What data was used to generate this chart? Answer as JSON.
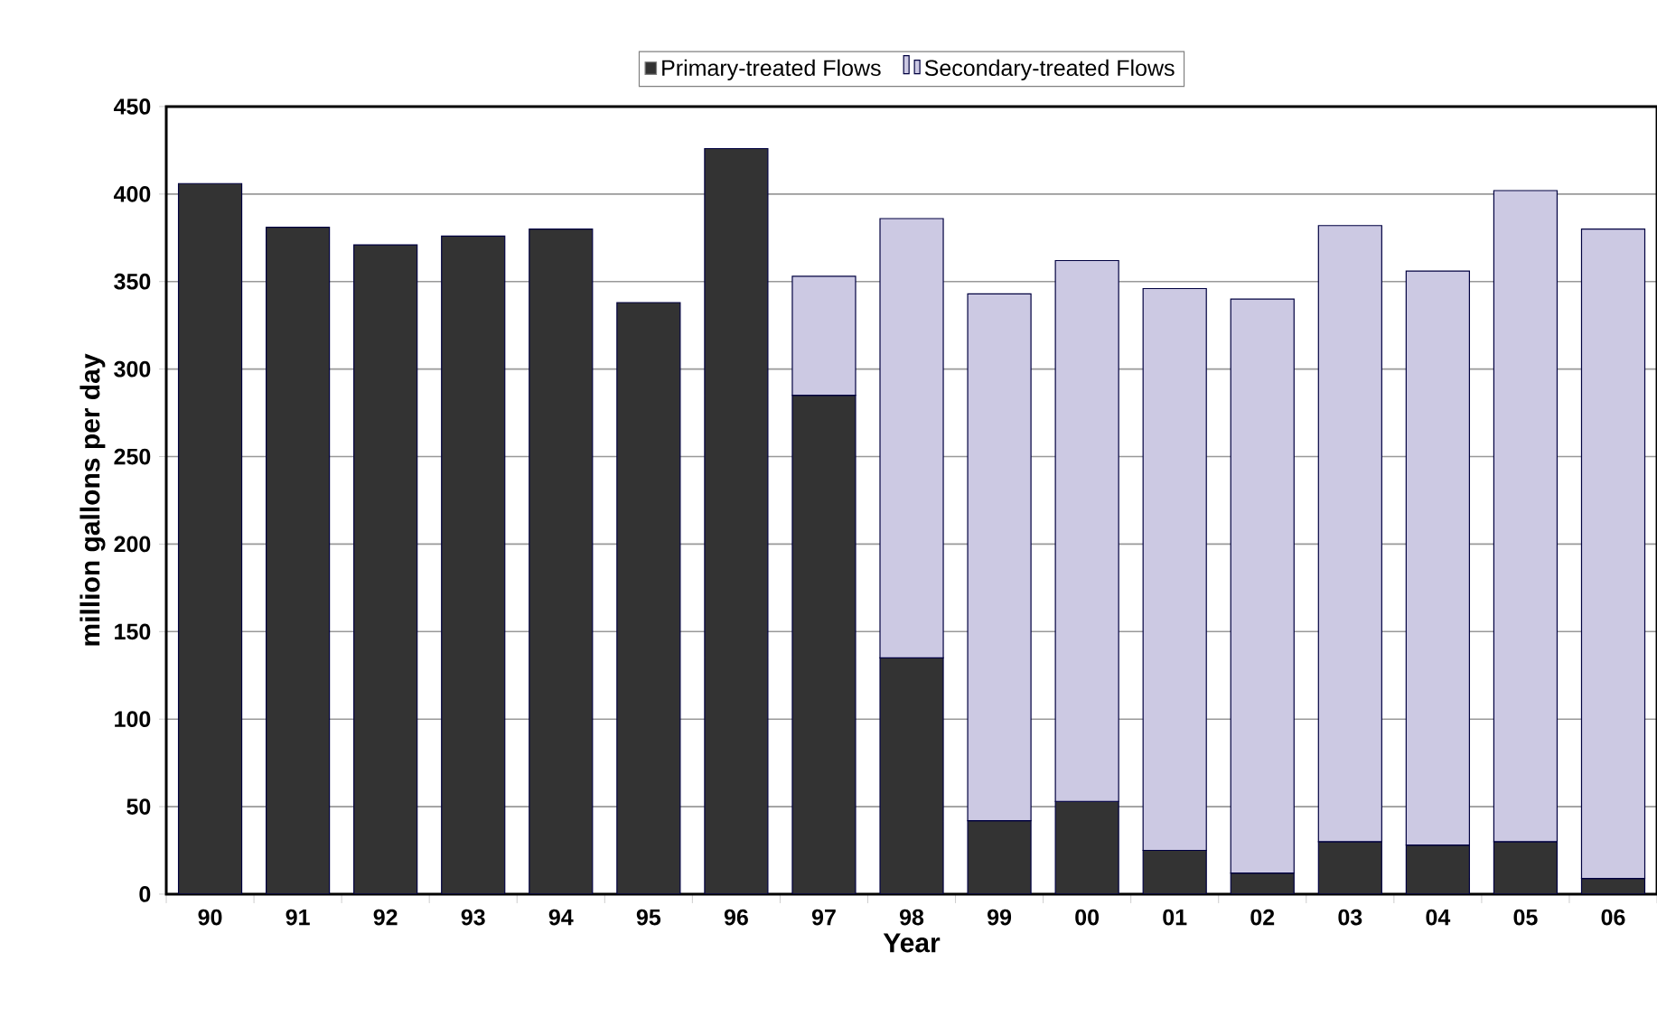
{
  "chart_data": {
    "type": "bar",
    "stacked": true,
    "xlabel": "Year",
    "ylabel": "million gallons per day",
    "categories": [
      "90",
      "91",
      "92",
      "93",
      "94",
      "95",
      "96",
      "97",
      "98",
      "99",
      "00",
      "01",
      "02",
      "03",
      "04",
      "05",
      "06"
    ],
    "series": [
      {
        "name": "Primary-treated Flows",
        "color": "#333333",
        "values": [
          406,
          381,
          371,
          376,
          380,
          338,
          426,
          285,
          135,
          42,
          53,
          25,
          12,
          30,
          28,
          30,
          9
        ]
      },
      {
        "name": "Secondary-treated Flows",
        "color": "#ccc9e3",
        "values": [
          null,
          null,
          null,
          null,
          null,
          null,
          null,
          68,
          251,
          301,
          309,
          321,
          328,
          352,
          328,
          372,
          371
        ]
      }
    ],
    "ylim": [
      0,
      450
    ],
    "yticks": [
      0,
      50,
      100,
      150,
      200,
      250,
      300,
      350,
      400,
      450
    ],
    "grid": "y",
    "legend": "top"
  }
}
